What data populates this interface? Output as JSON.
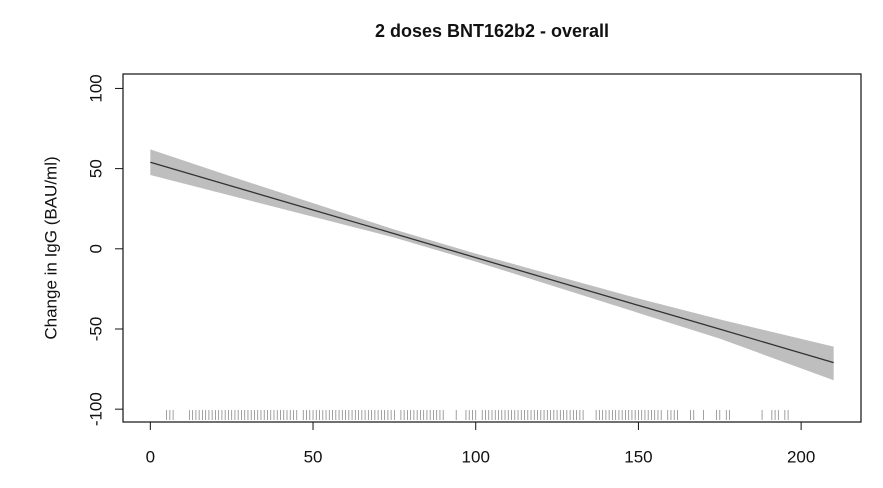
{
  "chart_data": {
    "type": "line",
    "title": "2 doses BNT162b2 - overall",
    "y_label": "Change in IgG (BAU/ml)",
    "x": [
      0,
      25,
      50,
      75,
      100,
      125,
      150,
      175,
      210
    ],
    "series": [
      {
        "color": "#333333",
        "values": [
          54,
          39.1,
          24.2,
          9.4,
          -5.5,
          -20.4,
          -35.3,
          -50.1,
          -71
        ]
      }
    ],
    "band": {
      "color": "#bebebe",
      "lower": [
        46,
        33,
        20,
        7,
        -8,
        -24,
        -40,
        -56,
        -82
      ],
      "upper": [
        62,
        45,
        28.5,
        12,
        -3,
        -17,
        -31,
        -44,
        -61
      ]
    },
    "rug": [
      5,
      6,
      7,
      12,
      13,
      14,
      15,
      16,
      17,
      18,
      19,
      20,
      21,
      22,
      23,
      24,
      25,
      26,
      27,
      28,
      29,
      30,
      31,
      32,
      33,
      34,
      35,
      36,
      37,
      38,
      39,
      40,
      41,
      42,
      43,
      44,
      45,
      47,
      48,
      49,
      50,
      51,
      52,
      53,
      54,
      55,
      56,
      57,
      58,
      59,
      60,
      61,
      62,
      63,
      64,
      65,
      66,
      67,
      68,
      69,
      70,
      71,
      72,
      73,
      74,
      75,
      77,
      78,
      79,
      80,
      81,
      82,
      83,
      84,
      85,
      86,
      87,
      88,
      89,
      90,
      94,
      97,
      98,
      99,
      100,
      102,
      103,
      104,
      105,
      106,
      107,
      108,
      109,
      110,
      111,
      112,
      113,
      114,
      115,
      116,
      117,
      118,
      119,
      120,
      121,
      122,
      123,
      124,
      125,
      126,
      127,
      128,
      129,
      130,
      131,
      132,
      133,
      137,
      138,
      139,
      140,
      141,
      142,
      143,
      144,
      145,
      146,
      147,
      148,
      149,
      150,
      151,
      152,
      153,
      154,
      155,
      156,
      157,
      159,
      160,
      161,
      162,
      166,
      167,
      170,
      174,
      175,
      177,
      178,
      188,
      191,
      192,
      193,
      195,
      196
    ],
    "xlim": [
      -8.4,
      218.4
    ],
    "ylim": [
      -108,
      109
    ],
    "xticks": [
      0,
      50,
      100,
      150,
      200
    ],
    "yticks": [
      -100,
      -50,
      0,
      50,
      100
    ]
  }
}
